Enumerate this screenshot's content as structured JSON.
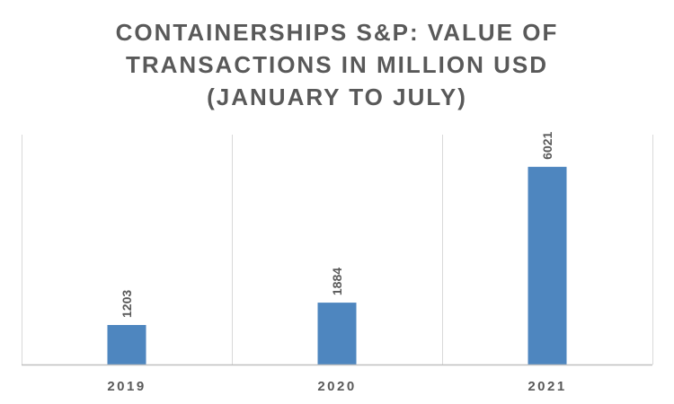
{
  "chart_data": {
    "type": "bar",
    "title_lines": [
      "CONTAINERSHIPS S&P: VALUE OF",
      "TRANSACTIONS IN MILLION USD",
      "(JANUARY TO JULY)"
    ],
    "categories": [
      "2019",
      "2020",
      "2021"
    ],
    "values": [
      1203,
      1884,
      6021
    ],
    "data_labels": [
      "1203",
      "1884",
      "6021"
    ],
    "xlabel": "",
    "ylabel": "",
    "ylim": [
      0,
      7000
    ],
    "grid": "vertical category separators",
    "legend": "none",
    "bar_color": "#4E86BF",
    "grid_color": "#D9D9D9",
    "axis_color": "#BFBFBF",
    "text_color": "#595959"
  }
}
